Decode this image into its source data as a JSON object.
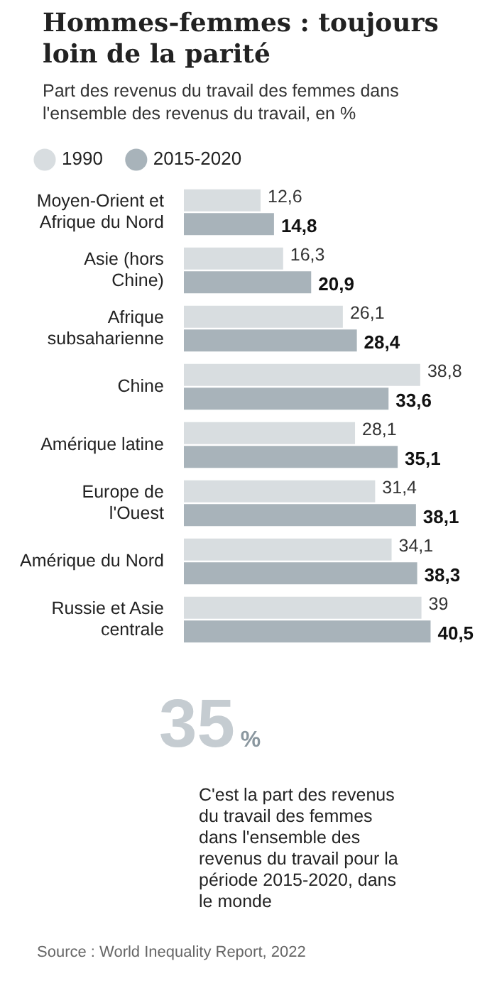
{
  "chart_data": {
    "type": "bar",
    "orientation": "horizontal",
    "title": "Hommes-femmes : toujours loin de la parité",
    "subtitle": "Part des revenus du travail des femmes dans l'ensemble des revenus du travail, en %",
    "categories": [
      "Moyen-Orient et Afrique du Nord",
      "Asie (hors Chine)",
      "Afrique subsaharienne",
      "Chine",
      "Amérique latine",
      "Europe de l'Ouest",
      "Amérique du Nord",
      "Russie et Asie centrale"
    ],
    "series": [
      {
        "name": "1990",
        "color": "#d8dde0",
        "values": [
          12.6,
          16.3,
          26.1,
          38.8,
          28.1,
          31.4,
          34.1,
          39
        ],
        "value_labels": [
          "12,6",
          "16,3",
          "26,1",
          "38,8",
          "28,1",
          "31,4",
          "34,1",
          "39"
        ]
      },
      {
        "name": "2015-2020",
        "color": "#a8b3ba",
        "values": [
          14.8,
          20.9,
          28.4,
          33.6,
          35.1,
          38.1,
          38.3,
          40.5
        ],
        "value_labels": [
          "14,8",
          "20,9",
          "28,4",
          "33,6",
          "35,1",
          "38,1",
          "38,3",
          "40,5"
        ]
      }
    ],
    "legend": "top left",
    "annotations": [
      "35%",
      "C'est la part des revenus du travail des femmes dans l'ensemble des revenus du travail pour la période 2015-2020, dans le monde",
      "Source : World Inequality Report, 2022"
    ]
  }
}
